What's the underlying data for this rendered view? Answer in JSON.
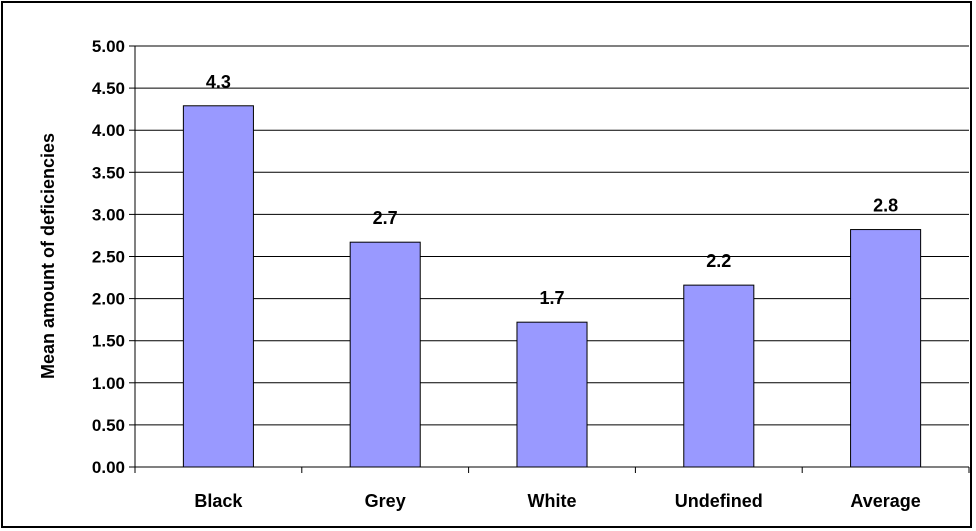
{
  "chart_data": {
    "type": "bar",
    "title": "",
    "xlabel": "",
    "ylabel": "Mean amount of deficiencies",
    "categories": [
      "Black",
      "Grey",
      "White",
      "Undefined",
      "Average"
    ],
    "values": [
      4.29,
      2.67,
      1.72,
      2.16,
      2.82
    ],
    "data_labels": [
      "4.3",
      "2.7",
      "1.7",
      "2.2",
      "2.8"
    ],
    "y_ticks": [
      "0.00",
      "0.50",
      "1.00",
      "1.50",
      "2.00",
      "2.50",
      "3.00",
      "3.50",
      "4.00",
      "4.50",
      "5.00"
    ],
    "ylim": [
      0,
      5
    ],
    "grid": true,
    "legend": "none",
    "bar_color": "#9999ff",
    "bar_border_color": "#000000"
  }
}
